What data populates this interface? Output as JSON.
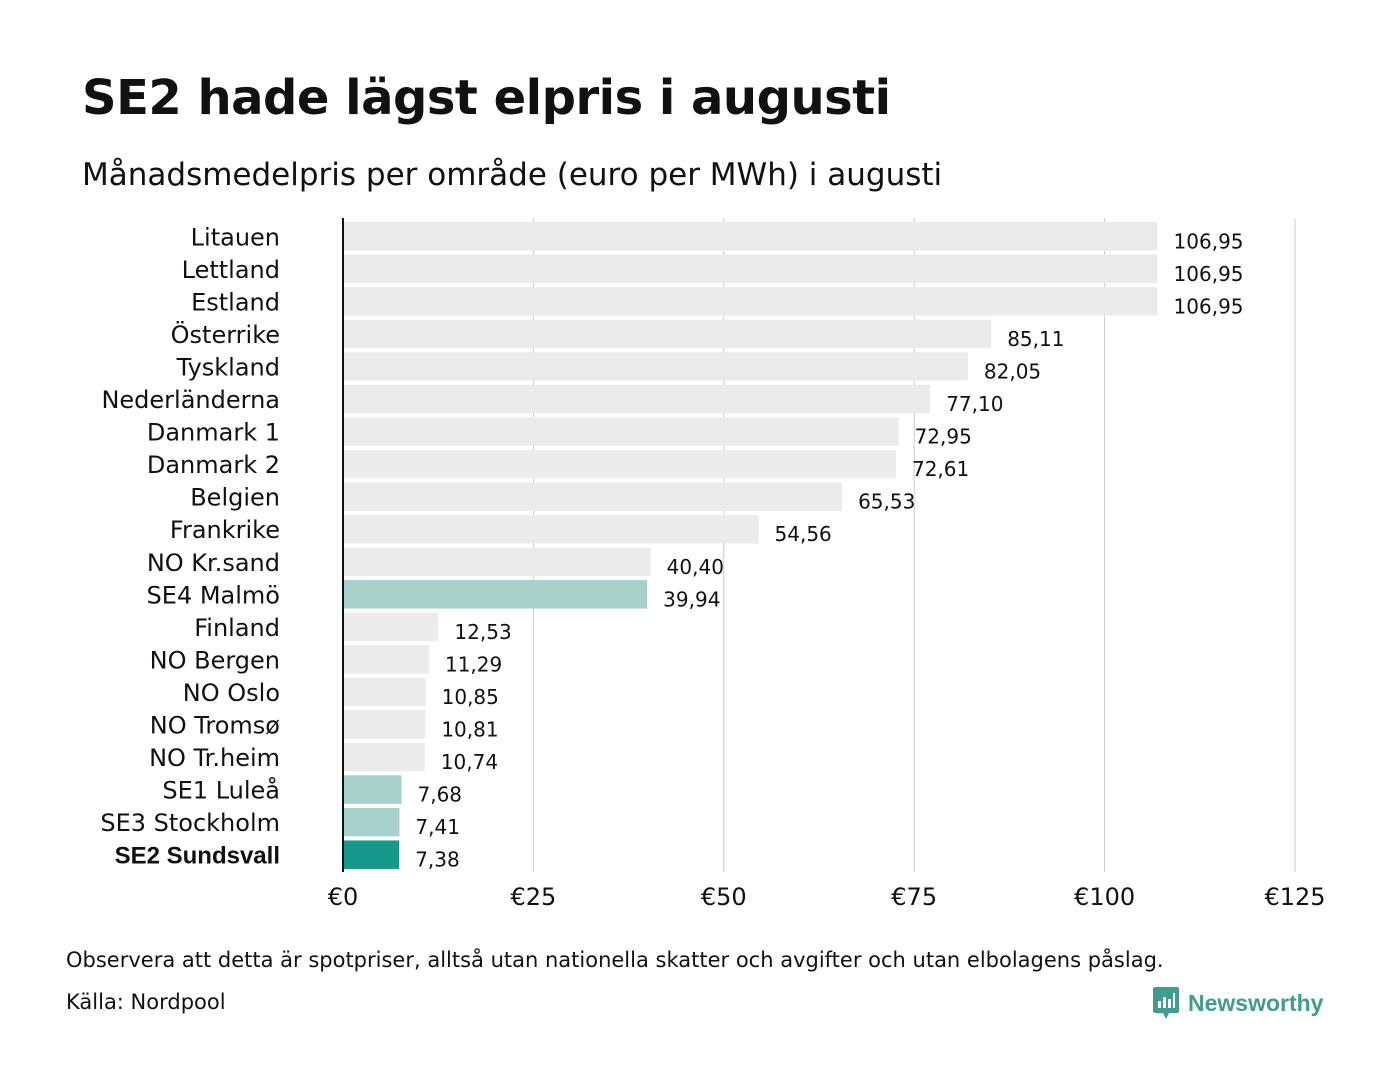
{
  "header": {
    "title": "SE2 hade lägst elpris i augusti",
    "subtitle": "Månadsmedelpris per område (euro per MWh) i augusti"
  },
  "footer": {
    "note": "Observera att detta är spotpriser, alltså utan nationella skatter och avgifter och utan elbolagens påslag.",
    "source": "Källa: Nordpool",
    "brand": "Newsworthy",
    "brand_icon": "bar-chart-pin-icon"
  },
  "colors": {
    "default_bar": "#ebebeb",
    "swedish_bar": "#a8d0cb",
    "highlight_bar": "#16988a",
    "grid": "#c8ccd4",
    "axis": "#111111",
    "brand": "#3f9c8e"
  },
  "chart_data": {
    "type": "bar",
    "orientation": "horizontal",
    "title": "SE2 hade lägst elpris i augusti",
    "subtitle": "Månadsmedelpris per område (euro per MWh) i augusti",
    "categories": [
      "Litauen",
      "Lettland",
      "Estland",
      "Österrike",
      "Tyskland",
      "Nederländerna",
      "Danmark  1",
      "Danmark  2",
      "Belgien",
      "Frankrike",
      "NO Kr.sand",
      "SE4  Malmö",
      "Finland",
      "NO Bergen",
      "NO Oslo",
      "NO Tromsø",
      "NO Tr.heim",
      "SE1  Luleå",
      "SE3  Stockholm",
      "SE2 Sundsvall"
    ],
    "values": [
      106.95,
      106.95,
      106.95,
      85.11,
      82.05,
      77.1,
      72.95,
      72.61,
      65.53,
      54.56,
      40.4,
      39.94,
      12.53,
      11.29,
      10.85,
      10.81,
      10.74,
      7.68,
      7.41,
      7.38
    ],
    "value_labels": [
      "106,95",
      "106,95",
      "106,95",
      "85,11",
      "82,05",
      "77,10",
      "72,95",
      "72,61",
      "65,53",
      "54,56",
      "40,40",
      "39,94",
      "12,53",
      "11,29",
      "10,85",
      "10,81",
      "10,74",
      "7,68",
      "7,41",
      "7,38"
    ],
    "bar_group": [
      "default",
      "default",
      "default",
      "default",
      "default",
      "default",
      "default",
      "default",
      "default",
      "default",
      "default",
      "swedish",
      "default",
      "default",
      "default",
      "default",
      "default",
      "swedish",
      "swedish",
      "highlight"
    ],
    "xlim": [
      0,
      125
    ],
    "x_ticks": [
      0,
      25,
      50,
      75,
      100,
      125
    ],
    "x_tick_labels": [
      "€0",
      "€25",
      "€50",
      "€75",
      "€100",
      "€125"
    ],
    "xlabel": "",
    "ylabel": "",
    "grid": "vertical",
    "legend": "none"
  }
}
